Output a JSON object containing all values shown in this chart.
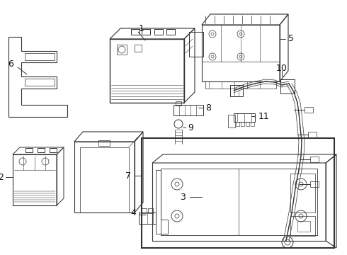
{
  "bg_color": "#ffffff",
  "line_color": "#333333",
  "label_color": "#111111",
  "figsize": [
    4.9,
    3.6
  ],
  "dpi": 100,
  "lw": 0.7
}
